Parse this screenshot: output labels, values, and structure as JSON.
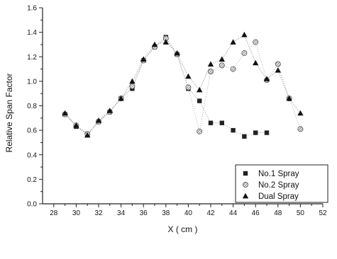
{
  "chart_data": {
    "type": "scatter",
    "title": "",
    "xlabel": "X ( cm )",
    "ylabel": "Relative Span Factor",
    "xlim": [
      27,
      52
    ],
    "ylim": [
      0,
      1.6
    ],
    "xticks": [
      28,
      29,
      30,
      31,
      32,
      33,
      34,
      35,
      36,
      37,
      38,
      39,
      40,
      41,
      42,
      43,
      44,
      45,
      46,
      47,
      48,
      49,
      50,
      51,
      52
    ],
    "xtick_labels": [
      "28",
      "30",
      "32",
      "34",
      "36",
      "38",
      "40",
      "42",
      "44",
      "46",
      "48",
      "50",
      "52"
    ],
    "xtick_label_values": [
      28,
      30,
      32,
      34,
      36,
      38,
      40,
      42,
      44,
      46,
      48,
      50,
      52
    ],
    "yticks": [
      0,
      0.2,
      0.4,
      0.6,
      0.8,
      1.0,
      1.2,
      1.4,
      1.6
    ],
    "ytick_labels": [
      "0.0",
      "0.2",
      "0.4",
      "0.6",
      "0.8",
      "1.0",
      "1.2",
      "1.4",
      "1.6"
    ],
    "grid": false,
    "legend_position": "bottom-right",
    "series": [
      {
        "name": "No.1 Spray",
        "marker": "square",
        "color": "#222222",
        "x": [
          29,
          30,
          31,
          32,
          33,
          34,
          35,
          36,
          37,
          38,
          39,
          40,
          41,
          42,
          43,
          44,
          45,
          46,
          47
        ],
        "y": [
          0.73,
          0.63,
          0.57,
          0.67,
          0.75,
          0.86,
          0.94,
          1.17,
          1.28,
          1.36,
          1.22,
          0.94,
          0.84,
          0.66,
          0.66,
          0.6,
          0.55,
          0.58,
          0.58
        ]
      },
      {
        "name": "No.2 Spray",
        "marker": "hatched-circle",
        "color": "#555555",
        "x": [
          29,
          30,
          31,
          32,
          33,
          34,
          35,
          36,
          37,
          38,
          39,
          40,
          41,
          42,
          43,
          44,
          45,
          46,
          47,
          48,
          49,
          50
        ],
        "y": [
          0.73,
          0.64,
          0.57,
          0.67,
          0.75,
          0.86,
          0.96,
          1.17,
          1.28,
          1.35,
          1.22,
          0.95,
          0.59,
          1.08,
          1.13,
          1.1,
          1.23,
          1.32,
          1.01,
          1.14,
          0.86,
          0.61
        ]
      },
      {
        "name": "Dual Spray",
        "marker": "triangle",
        "color": "#111111",
        "x": [
          29,
          30,
          31,
          32,
          33,
          34,
          35,
          36,
          37,
          38,
          39,
          40,
          41,
          42,
          43,
          44,
          45,
          46,
          47,
          48,
          49,
          50
        ],
        "y": [
          0.74,
          0.64,
          0.56,
          0.68,
          0.76,
          0.86,
          1.0,
          1.18,
          1.3,
          1.32,
          1.23,
          1.04,
          0.93,
          1.14,
          1.18,
          1.32,
          1.38,
          1.15,
          1.02,
          1.09,
          0.86,
          0.74
        ]
      }
    ]
  }
}
